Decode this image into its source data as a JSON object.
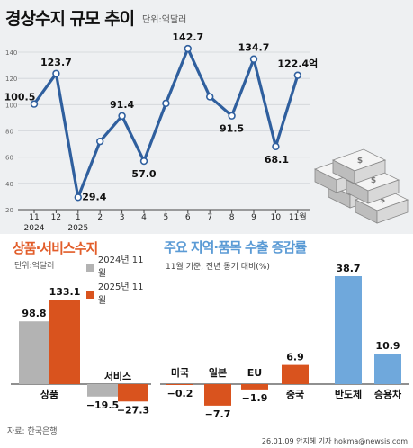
{
  "colors": {
    "line": "#2f5f9e",
    "gray_bar": "#b3b3b3",
    "orange": "#d9531e",
    "blue_bar": "#6fa8dc",
    "panel_bg": "#eef0f2"
  },
  "top": {
    "title": "경상수지 규모 추이",
    "unit": "단위:억달러",
    "illustration": "stacked-money-bundles-icon"
  },
  "chart_data": [
    {
      "type": "line",
      "categories": [
        "11",
        "12",
        "1",
        "2",
        "3",
        "4",
        "5",
        "6",
        "7",
        "8",
        "9",
        "10",
        "11월"
      ],
      "year_labels": [
        {
          "label": "2024",
          "at": "11"
        },
        {
          "label": "2025",
          "at": "1"
        }
      ],
      "series": [
        {
          "values": [
            100.5,
            123.7,
            29.4,
            72,
            91.4,
            57.0,
            101,
            142.7,
            106,
            91.5,
            134.7,
            68.1,
            122.4
          ]
        }
      ],
      "data_labels": [
        "100.5",
        "123.7",
        "29.4",
        null,
        "91.4",
        "57.0",
        null,
        "142.7",
        null,
        "91.5",
        "134.7",
        "68.1",
        "122.4억"
      ],
      "yticks": [
        20,
        40,
        60,
        80,
        100,
        120,
        140
      ],
      "ylim": [
        20,
        150
      ]
    },
    {
      "type": "bar",
      "title": "상품·서비스수지",
      "unit": "단위:억달러",
      "categories": [
        "상품",
        "서비스"
      ],
      "series": [
        {
          "name": "2024년 11월",
          "values": [
            98.8,
            -19.5
          ],
          "labels": [
            "98.8",
            "−19.5"
          ]
        },
        {
          "name": "2025년 11월",
          "values": [
            133.1,
            -27.3
          ],
          "labels": [
            "133.1",
            "−27.3"
          ]
        }
      ]
    },
    {
      "type": "bar",
      "title": "주요 지역·품목 수출 증감률",
      "note": "11월 기준, 전년 동기 대비(%)",
      "categories": [
        "미국",
        "일본",
        "EU",
        "중국",
        "반도체",
        "승용차"
      ],
      "values": [
        -0.2,
        -7.7,
        -1.9,
        6.9,
        38.7,
        10.9
      ],
      "labels": [
        "−0.2",
        "−7.7",
        "−1.9",
        "6.9",
        "38.7",
        "10.9"
      ],
      "bar_colors": [
        "#d9531e",
        "#d9531e",
        "#d9531e",
        "#d9531e",
        "#6fa8dc",
        "#6fa8dc"
      ]
    }
  ],
  "footer": {
    "source": "자료: 한국은행",
    "credit": "26.01.09 안지혜 기자 hokma@newsis.com"
  }
}
